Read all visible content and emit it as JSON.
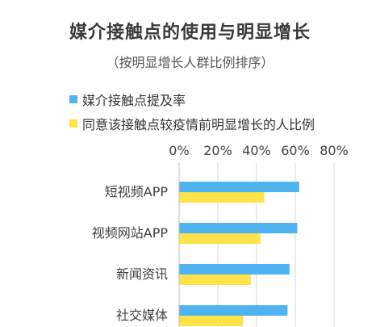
{
  "chart_data": {
    "type": "bar",
    "orientation": "horizontal",
    "title": "媒介接触点的使用与明显增长",
    "subtitle": "（按明显增长人群比例排序）",
    "categories": [
      "短视频APP",
      "视频网站APP",
      "新闻资讯",
      "社交媒体"
    ],
    "series": [
      {
        "name": "媒介接触点提及率",
        "color": "#4eb3ef",
        "values": [
          62,
          61,
          57,
          56
        ]
      },
      {
        "name": "同意该接触点较疫情前明显增长的人比例",
        "color": "#ffe347",
        "values": [
          44,
          42,
          37,
          33
        ]
      }
    ],
    "xlim": [
      0,
      80
    ],
    "xticks": [
      0,
      20,
      40,
      60,
      80
    ],
    "xtick_labels": [
      "0%",
      "20%",
      "40%",
      "60%",
      "80%"
    ],
    "axis_position": "top",
    "grid": true,
    "legend_position": "top-left"
  }
}
